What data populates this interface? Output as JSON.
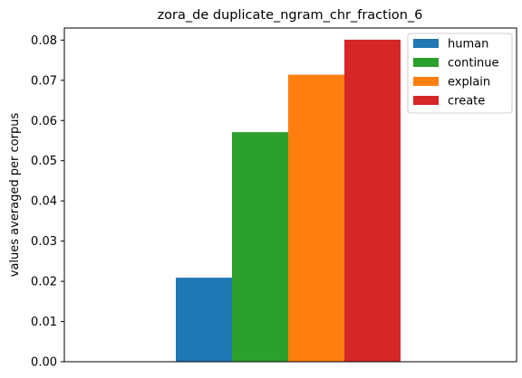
{
  "chart_data": {
    "type": "bar",
    "title": "zora_de duplicate_ngram_chr_fraction_6",
    "xlabel": "",
    "ylabel": "values averaged per corpus",
    "ylim": [
      0,
      0.083
    ],
    "yticks": [
      "0.00",
      "0.01",
      "0.02",
      "0.03",
      "0.04",
      "0.05",
      "0.06",
      "0.07",
      "0.08"
    ],
    "ytick_values": [
      0,
      0.01,
      0.02,
      0.03,
      0.04,
      0.05,
      0.06,
      0.07,
      0.08
    ],
    "grid": false,
    "legend_position": "top-right",
    "series": [
      {
        "name": "human",
        "value": 0.0209,
        "color": "#1f77b4"
      },
      {
        "name": "continue",
        "value": 0.0571,
        "color": "#2ca02c"
      },
      {
        "name": "explain",
        "value": 0.0714,
        "color": "#ff7f0e"
      },
      {
        "name": "create",
        "value": 0.0801,
        "color": "#d62728"
      }
    ]
  }
}
